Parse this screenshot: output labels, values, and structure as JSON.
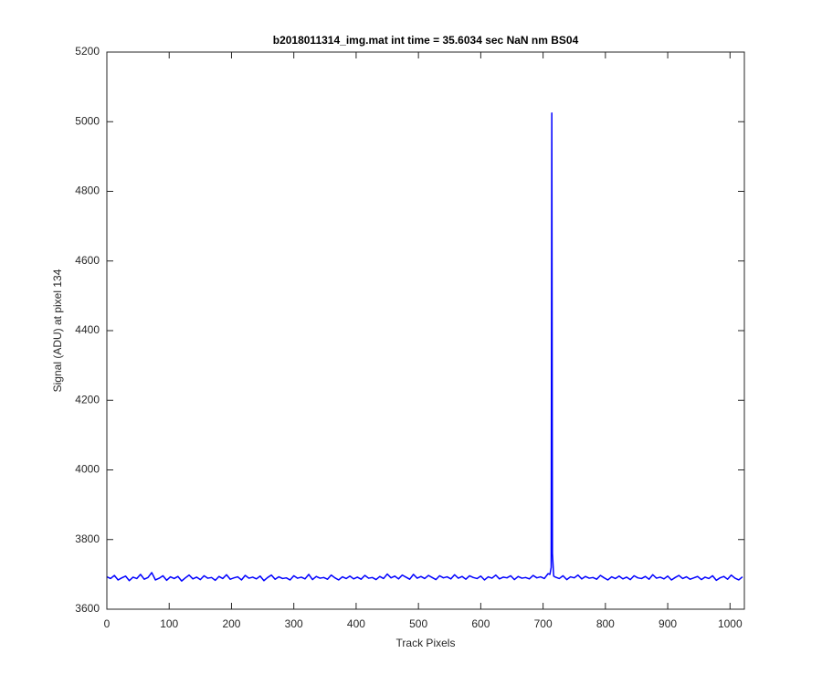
{
  "chart_data": {
    "type": "line",
    "title": "b2018011314_img.mat int time = 35.6034 sec  NaN nm BS04",
    "x_label": "Track Pixels",
    "y_label": "Signal (ADU) at pixel 134",
    "color": "#0000ff",
    "xlim": [
      0,
      1023
    ],
    "ylim": [
      3600,
      5200
    ],
    "xticks": [
      0,
      100,
      200,
      300,
      400,
      500,
      600,
      700,
      800,
      900,
      1000
    ],
    "yticks": [
      3600,
      3800,
      4000,
      4200,
      4400,
      4600,
      4800,
      5000,
      5200
    ],
    "x": [
      0,
      6,
      12,
      18,
      24,
      30,
      36,
      42,
      48,
      54,
      60,
      66,
      72,
      78,
      84,
      90,
      96,
      102,
      108,
      114,
      120,
      126,
      132,
      138,
      144,
      150,
      156,
      162,
      168,
      174,
      180,
      186,
      192,
      198,
      204,
      210,
      216,
      222,
      228,
      234,
      240,
      246,
      252,
      258,
      264,
      270,
      276,
      282,
      288,
      294,
      300,
      306,
      312,
      318,
      324,
      330,
      336,
      342,
      348,
      354,
      360,
      366,
      372,
      378,
      384,
      390,
      396,
      402,
      408,
      414,
      420,
      426,
      432,
      438,
      444,
      450,
      456,
      462,
      468,
      474,
      480,
      486,
      492,
      498,
      504,
      510,
      516,
      522,
      528,
      534,
      540,
      546,
      552,
      558,
      564,
      570,
      576,
      582,
      588,
      594,
      600,
      606,
      612,
      618,
      624,
      630,
      636,
      642,
      648,
      654,
      660,
      666,
      672,
      678,
      684,
      690,
      696,
      702,
      708,
      711,
      713,
      714,
      715,
      717,
      720,
      726,
      732,
      738,
      744,
      750,
      756,
      762,
      768,
      774,
      780,
      786,
      792,
      798,
      804,
      810,
      816,
      822,
      828,
      834,
      840,
      846,
      852,
      858,
      864,
      870,
      876,
      882,
      888,
      894,
      900,
      906,
      912,
      918,
      924,
      930,
      936,
      942,
      948,
      954,
      960,
      966,
      972,
      978,
      984,
      990,
      996,
      1002,
      1008,
      1014,
      1020
    ],
    "values": [
      3693,
      3688,
      3697,
      3684,
      3690,
      3695,
      3682,
      3692,
      3688,
      3700,
      3686,
      3691,
      3705,
      3684,
      3689,
      3696,
      3683,
      3693,
      3688,
      3694,
      3681,
      3690,
      3698,
      3687,
      3692,
      3685,
      3696,
      3689,
      3691,
      3683,
      3694,
      3688,
      3699,
      3686,
      3690,
      3693,
      3684,
      3697,
      3689,
      3692,
      3687,
      3695,
      3682,
      3691,
      3698,
      3686,
      3693,
      3688,
      3690,
      3684,
      3696,
      3689,
      3692,
      3687,
      3700,
      3685,
      3694,
      3689,
      3691,
      3686,
      3698,
      3690,
      3684,
      3693,
      3688,
      3695,
      3687,
      3692,
      3686,
      3697,
      3689,
      3691,
      3685,
      3694,
      3688,
      3701,
      3690,
      3695,
      3687,
      3698,
      3692,
      3686,
      3700,
      3689,
      3694,
      3688,
      3697,
      3691,
      3685,
      3696,
      3690,
      3693,
      3687,
      3699,
      3689,
      3694,
      3686,
      3696,
      3691,
      3688,
      3695,
      3684,
      3693,
      3689,
      3698,
      3687,
      3692,
      3690,
      3696,
      3685,
      3694,
      3689,
      3691,
      3687,
      3697,
      3690,
      3693,
      3688,
      3702,
      3700,
      3720,
      5025,
      3760,
      3695,
      3692,
      3688,
      3696,
      3685,
      3693,
      3690,
      3698,
      3687,
      3694,
      3689,
      3691,
      3686,
      3697,
      3690,
      3684,
      3693,
      3688,
      3695,
      3687,
      3692,
      3685,
      3696,
      3690,
      3688,
      3694,
      3686,
      3699,
      3689,
      3692,
      3687,
      3695,
      3684,
      3691,
      3697,
      3688,
      3693,
      3686,
      3690,
      3694,
      3685,
      3692,
      3688,
      3696,
      3683,
      3690,
      3694,
      3686,
      3698,
      3689,
      3684,
      3693
    ]
  }
}
